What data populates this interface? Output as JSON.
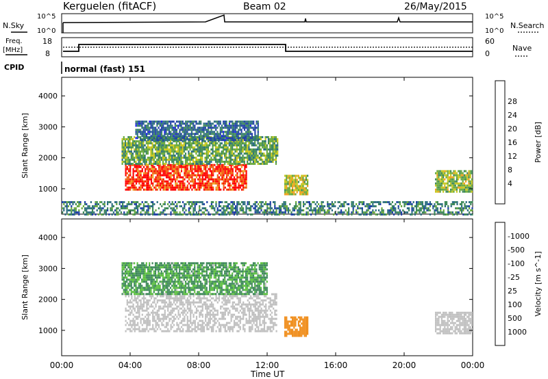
{
  "header": {
    "station": "Kerguelen (fitACF)",
    "beam": "Beam 02",
    "date": "26/May/2015"
  },
  "strip_labels": {
    "nsky": "N.Sky",
    "nsky_top": "10^5",
    "nsky_bottom": "10^0",
    "nsearch": "N.Search",
    "nsearch_top": "10^5",
    "nsearch_bottom": "10^0",
    "freq_line1": "Freq.",
    "freq_line2": "[MHz]",
    "freq_top": "18",
    "freq_bottom": "8",
    "nave": "Nave",
    "nave_top": "60",
    "nave_bottom": "0",
    "cpid": "CPID",
    "mode": "normal (fast) 151"
  },
  "colors": {
    "scatter_low": "#2e7d32",
    "ground": "#808080"
  },
  "chart_data": [
    {
      "type": "heatmap",
      "title": "Power",
      "xlabel": "Time UT",
      "ylabel": "Slant Range [km]",
      "x_ticks": [
        "00:00",
        "04:00",
        "08:00",
        "12:00",
        "16:00",
        "20:00",
        "00:00"
      ],
      "xlim": [
        0,
        24
      ],
      "y_ticks": [
        1000,
        2000,
        3000,
        4000
      ],
      "ylim": [
        180,
        4600
      ],
      "colorbar": {
        "label": "Power [dB]",
        "ticks": [
          "4",
          "8",
          "12",
          "16",
          "20",
          "24",
          "28"
        ],
        "range": [
          0,
          30
        ],
        "colors": [
          "#1a1aff",
          "#2040a8",
          "#2e6f82",
          "#3f8a5a",
          "#6aaa40",
          "#c8c820",
          "#f0a020",
          "#f06010",
          "#ff0000"
        ]
      },
      "regions": [
        {
          "name": "main-echo",
          "t": [
            3.7,
            10.8
          ],
          "r": [
            1000,
            1800
          ],
          "value": 27
        },
        {
          "name": "mid-band",
          "t": [
            3.5,
            12.6
          ],
          "r": [
            1800,
            2700
          ],
          "value": 14
        },
        {
          "name": "high-band",
          "t": [
            4.3,
            11.5
          ],
          "r": [
            2600,
            3200
          ],
          "value": 8
        },
        {
          "name": "afternoon-blob",
          "t": [
            13.0,
            14.4
          ],
          "r": [
            800,
            1450
          ],
          "value": 18
        },
        {
          "name": "evening-patch",
          "t": [
            21.8,
            24
          ],
          "r": [
            900,
            1600
          ],
          "value": 16
        },
        {
          "name": "ground-scatter",
          "t": [
            0,
            24
          ],
          "r": [
            180,
            600
          ],
          "value": 10
        }
      ]
    },
    {
      "type": "heatmap",
      "title": "Velocity",
      "xlabel": "Time UT",
      "ylabel": "Slant Range [km]",
      "x_ticks": [
        "00:00",
        "04:00",
        "08:00",
        "12:00",
        "16:00",
        "20:00",
        "00:00"
      ],
      "xlim": [
        0,
        24
      ],
      "y_ticks": [
        1000,
        2000,
        3000,
        4000
      ],
      "ylim": [
        180,
        4600
      ],
      "colorbar": {
        "label": "Velocity [m s^-1]",
        "ticks": [
          "1000",
          "500",
          "100",
          "25",
          "-25",
          "-100",
          "-500",
          "-1000"
        ],
        "colors": [
          "#1a1aff",
          "#2a52b0",
          "#3f8a5a",
          "#5cc040",
          "#c0c0c0",
          "#f0c020",
          "#f09020",
          "#f05010",
          "#ff0000"
        ]
      },
      "regions": [
        {
          "name": "ground-scatter-gray",
          "t": [
            3.7,
            12.5
          ],
          "r": [
            1000,
            2200
          ],
          "value": 0
        },
        {
          "name": "mid-band",
          "t": [
            3.5,
            12.0
          ],
          "r": [
            2200,
            3200
          ],
          "value": 120
        },
        {
          "name": "afternoon-blob",
          "t": [
            13.0,
            14.4
          ],
          "r": [
            800,
            1450
          ],
          "value": -400
        },
        {
          "name": "evening-patch",
          "t": [
            21.8,
            24
          ],
          "r": [
            900,
            1600
          ],
          "value": 0
        }
      ]
    }
  ]
}
